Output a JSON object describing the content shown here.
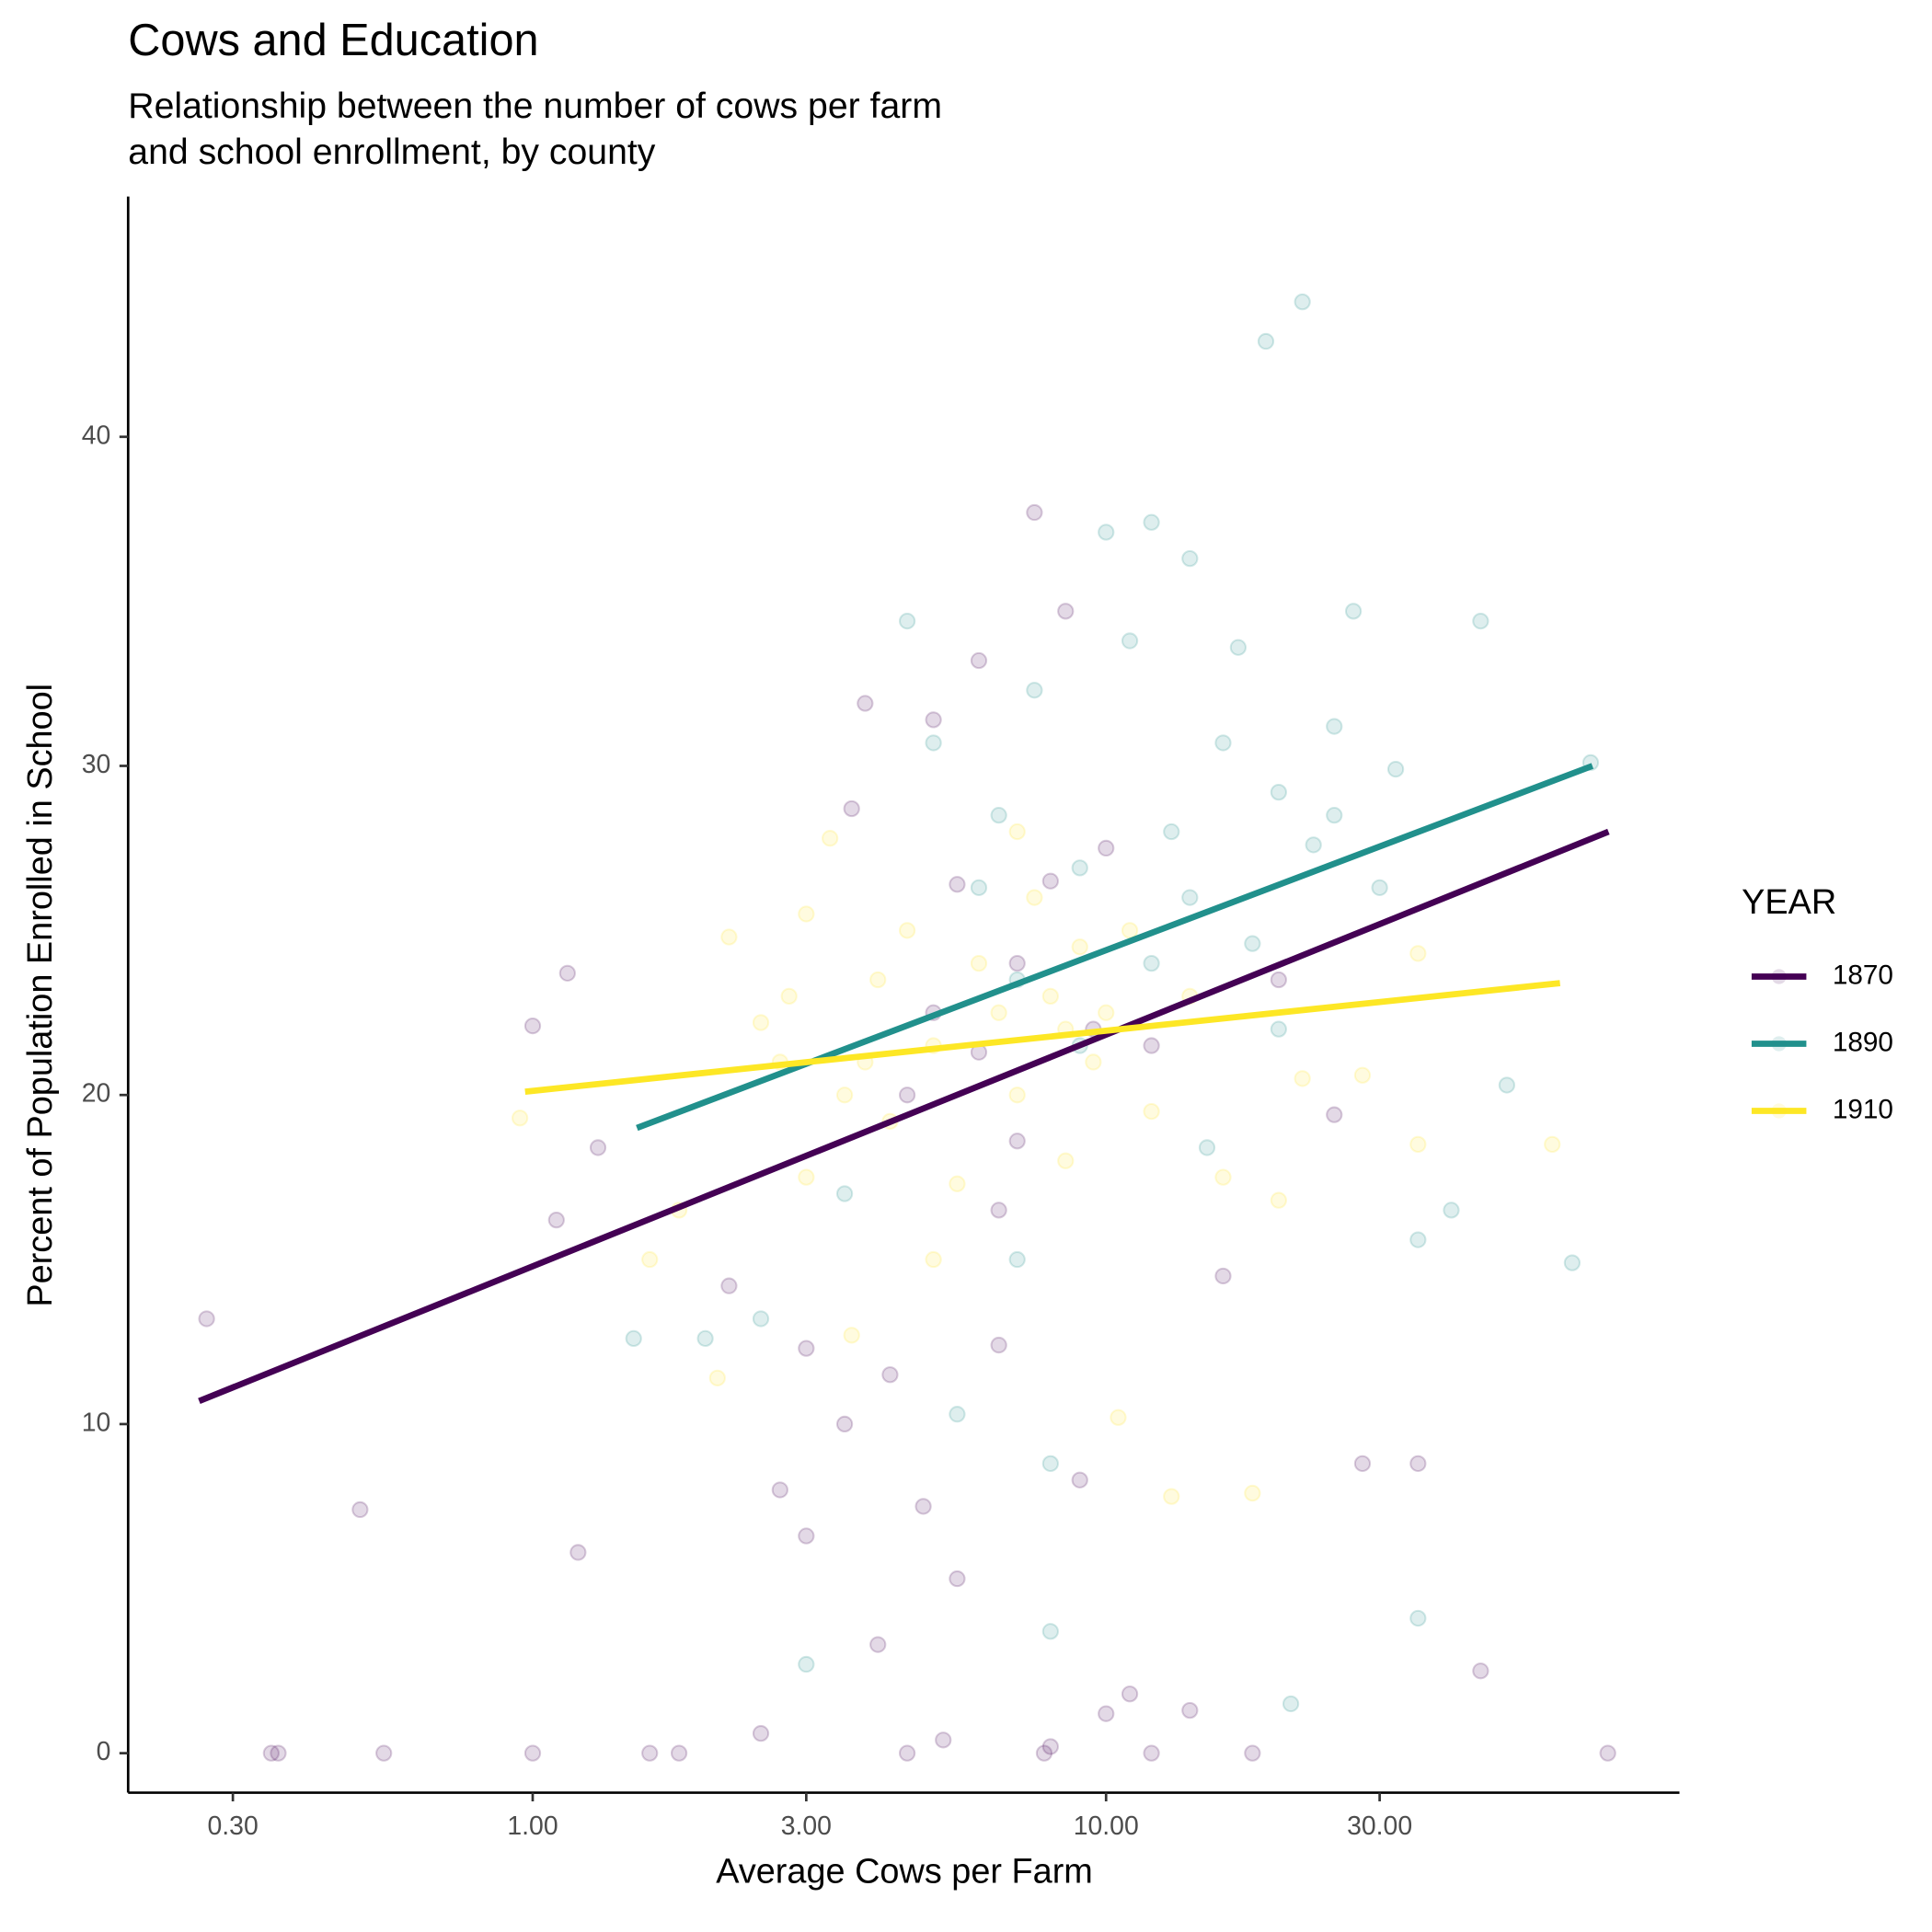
{
  "chart_data": {
    "type": "scatter",
    "title": "Cows and Education",
    "subtitle": [
      "Relationship between the number of cows per farm",
      "and school enrollment, by county"
    ],
    "x_label": "Average Cows per Farm",
    "y_label": "Percent of Population Enrolled in School",
    "x_scale": "log",
    "xlim": [
      0.197,
      100
    ],
    "ylim": [
      -1.2,
      47.3
    ],
    "xticks": [
      {
        "value": 0.3,
        "label": "0.30"
      },
      {
        "value": 1,
        "label": "1.00"
      },
      {
        "value": 3,
        "label": "3.00"
      },
      {
        "value": 10,
        "label": "10.00"
      },
      {
        "value": 30,
        "label": "30.00"
      }
    ],
    "yticks": [
      0,
      10,
      20,
      30,
      40
    ],
    "grid": false,
    "legend_title": "YEAR",
    "legend_position": "right",
    "point_opacity": 0.15,
    "series": [
      {
        "name": "1870",
        "color": "#440154",
        "x": [
          0.27,
          0.35,
          0.36,
          0.55,
          1.0,
          0.5,
          1.0,
          1.1,
          1.2,
          1.15,
          1.3,
          1.6,
          1.8,
          2.2,
          2.5,
          2.7,
          3.0,
          3.0,
          3.5,
          3.6,
          3.8,
          4.0,
          4.2,
          4.5,
          4.8,
          5.0,
          5.0,
          5.2,
          5.5,
          5.5,
          6.0,
          6.0,
          6.5,
          7.0,
          7.5,
          7.8,
          8.0,
          8.0,
          8.5,
          9.0,
          10.0,
          10.0,
          11.0,
          12.0,
          12.0,
          14.0,
          16.0,
          18.0,
          20.0,
          25.0,
          28.0,
          35.0,
          45.0,
          75.0,
          6.5,
          7.0,
          9.5,
          4.5
        ],
        "values": [
          13.2,
          0,
          0,
          0,
          0,
          7.4,
          22.1,
          16.2,
          6.1,
          23.7,
          18.4,
          0,
          0,
          14.2,
          0.6,
          8.0,
          12.3,
          6.6,
          10.0,
          28.7,
          31.9,
          3.3,
          11.5,
          0,
          7.5,
          22.5,
          31.4,
          0.4,
          5.3,
          26.4,
          33.2,
          21.3,
          12.4,
          18.6,
          37.7,
          0,
          0.2,
          26.5,
          34.7,
          8.3,
          1.2,
          27.5,
          1.8,
          0,
          21.5,
          1.3,
          14.5,
          0,
          23.5,
          19.4,
          8.8,
          8.8,
          2.5,
          0,
          16.5,
          24.0,
          22.0,
          20.0
        ],
        "fit": {
          "x": [
            0.262,
            75.2
          ],
          "values": [
            10.7,
            28.0
          ]
        }
      },
      {
        "name": "1890",
        "color": "#21908c",
        "x": [
          1.5,
          2.0,
          2.5,
          3.0,
          3.5,
          4.5,
          5.0,
          5.5,
          6.0,
          6.5,
          7.0,
          7.5,
          8.0,
          8.0,
          9.0,
          10.0,
          11.0,
          12.0,
          13.0,
          14.0,
          15.0,
          16.0,
          17.0,
          18.0,
          19.0,
          20.0,
          21.0,
          22.0,
          23.0,
          25.0,
          27.0,
          30.0,
          32.0,
          35.0,
          35.0,
          40.0,
          45.0,
          50.0,
          65.0,
          70.0,
          12.0,
          9.0,
          7.0,
          20.0,
          14.0,
          25.0
        ],
        "values": [
          12.6,
          12.6,
          13.2,
          2.7,
          17.0,
          34.4,
          30.7,
          10.3,
          26.3,
          28.5,
          15.0,
          32.3,
          3.7,
          8.8,
          26.9,
          37.1,
          33.8,
          37.4,
          28.0,
          36.3,
          18.4,
          30.7,
          33.6,
          24.6,
          42.9,
          29.2,
          1.5,
          44.1,
          27.6,
          31.2,
          34.7,
          26.3,
          29.9,
          4.1,
          15.6,
          16.5,
          34.4,
          20.3,
          14.9,
          30.1,
          24.0,
          21.5,
          23.5,
          22.0,
          26.0,
          28.5
        ],
        "fit": {
          "x": [
            1.52,
            70.5
          ],
          "values": [
            19.0,
            30.0
          ]
        }
      },
      {
        "name": "1910",
        "color": "#fde725",
        "x": [
          0.95,
          1.6,
          1.8,
          2.1,
          2.2,
          2.5,
          2.7,
          3.0,
          3.0,
          3.3,
          3.5,
          3.6,
          4.0,
          4.2,
          4.5,
          5.0,
          5.5,
          6.0,
          6.5,
          7.0,
          7.5,
          8.0,
          8.5,
          9.0,
          9.5,
          10.0,
          10.5,
          11.0,
          12.0,
          13.0,
          14.0,
          16.0,
          18.0,
          20.0,
          22.0,
          28.0,
          35.0,
          35.0,
          60.0,
          5.0,
          7.0,
          3.8,
          2.8,
          8.5
        ],
        "values": [
          19.3,
          15.0,
          16.5,
          11.4,
          24.8,
          22.2,
          21.0,
          25.5,
          17.5,
          27.8,
          20.0,
          12.7,
          23.5,
          19.2,
          25.0,
          21.5,
          17.3,
          24.0,
          22.5,
          20.0,
          26.0,
          23.0,
          18.0,
          24.5,
          21.0,
          22.5,
          10.2,
          25.0,
          19.5,
          7.8,
          23.0,
          17.5,
          7.9,
          16.8,
          20.5,
          20.6,
          18.5,
          24.3,
          18.5,
          15.0,
          28.0,
          21.0,
          23.0,
          22.0
        ],
        "fit": {
          "x": [
            0.97,
            61.9
          ],
          "values": [
            20.1,
            23.4
          ]
        }
      }
    ]
  }
}
